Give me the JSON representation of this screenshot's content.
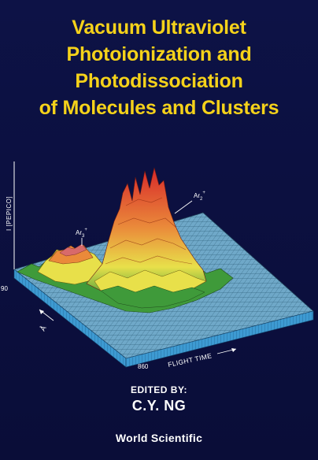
{
  "title_lines": [
    "Vacuum Ultraviolet",
    "Photoionization and",
    "Photodissociation",
    "of Molecules and Clusters"
  ],
  "figure": {
    "yaxis_label": "I [PEPICO]",
    "tick_left": "90",
    "tick_bottom": "860",
    "x_axis_label": "FLIGHT TIME",
    "depth_axis_label": "Å",
    "peak_label_1_base": "Ar",
    "peak_label_1_sub": "3",
    "peak_label_1_sup": "+",
    "peak_label_2_base": "Ar",
    "peak_label_2_sub": "2",
    "peak_label_2_sup": "+"
  },
  "editors": {
    "label": "EDITED BY:",
    "name": "C.Y. NG"
  },
  "publisher": "World Scientific",
  "colors": {
    "background": "#0b0f3a",
    "title": "#f5d21a",
    "surface_base": "#6fa8c8",
    "surface_green": "#3f9a3a",
    "surface_yellow": "#e8e04a",
    "surface_orange": "#ea8a3a",
    "surface_red": "#d8282a"
  }
}
